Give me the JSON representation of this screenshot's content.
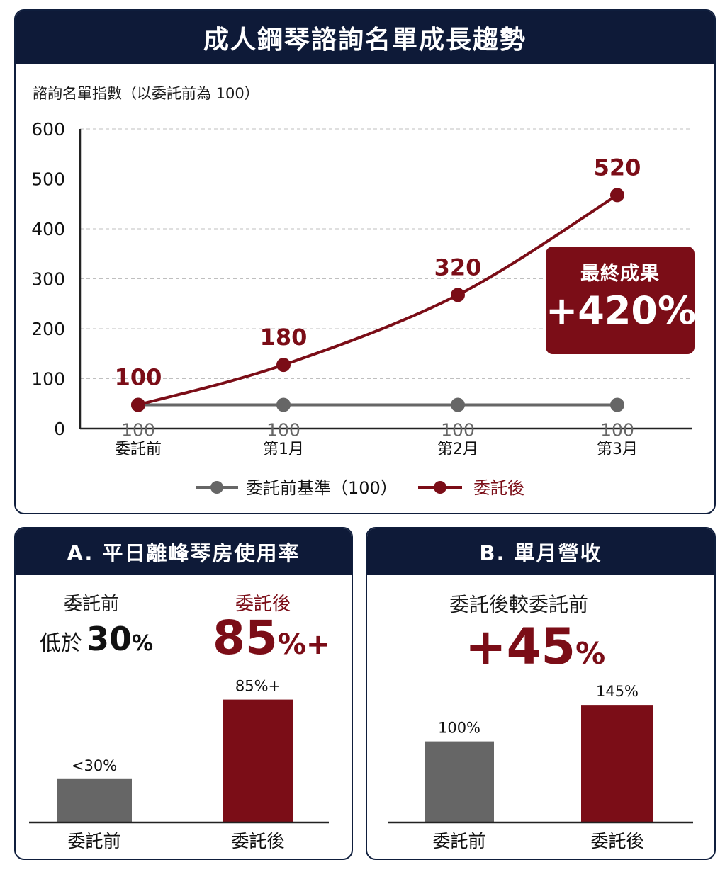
{
  "colors": {
    "navy": "#0e1a38",
    "crimson": "#7b0d17",
    "gray": "#666666",
    "axis": "#222222",
    "grid": "#bfbfbf"
  },
  "main": {
    "title": "成人鋼琴諮詢名單成長趨勢",
    "ylabel": "諮詢名單指數（以委託前為 100）",
    "callout_label": "最終成果",
    "callout_value": "+420%"
  },
  "chart_data": [
    {
      "type": "line",
      "title": "成人鋼琴諮詢名單成長趨勢",
      "ylabel": "諮詢名單指數（以委託前為 100）",
      "xlabel": "",
      "ylim": [
        0,
        600
      ],
      "yticks": [
        0,
        100,
        200,
        300,
        400,
        500,
        600
      ],
      "grid": true,
      "legend_position": "bottom",
      "categories": [
        "委託前",
        "第1月",
        "第2月",
        "第3月"
      ],
      "series": [
        {
          "name": "委託前基準（100）",
          "values": [
            100,
            100,
            100,
            100
          ],
          "data_labels": [
            "100",
            "100",
            "100",
            "100"
          ],
          "color": "#666666"
        },
        {
          "name": "委託後",
          "values": [
            100,
            180,
            320,
            520
          ],
          "data_labels": [
            "100",
            "180",
            "320",
            "520"
          ],
          "color": "#7b0d17"
        }
      ]
    },
    {
      "type": "bar",
      "title": "A. 平日離峰琴房使用率",
      "categories": [
        "委託前",
        "委託後"
      ],
      "values": [
        30,
        85
      ],
      "data_labels": [
        "<30%",
        "85%+"
      ],
      "colors": [
        "#666666",
        "#7b0d17"
      ],
      "ylim": [
        0,
        100
      ]
    },
    {
      "type": "bar",
      "title": "B. 單月營收",
      "categories": [
        "委託前",
        "委託後"
      ],
      "values": [
        100,
        145
      ],
      "data_labels": [
        "100%",
        "145%"
      ],
      "colors": [
        "#666666",
        "#7b0d17"
      ],
      "ylim": [
        0,
        250
      ]
    }
  ],
  "panel_a": {
    "title": "A. 平日離峰琴房使用率",
    "before_label": "委託前",
    "before_prefix": "低於",
    "before_num": "30",
    "before_pct": "%",
    "after_label": "委託後",
    "after_num": "85",
    "after_suffix": "%+"
  },
  "panel_b": {
    "title": "B. 單月營收",
    "subtitle": "委託後較委託前",
    "big_num": "+45",
    "big_pct": "%"
  }
}
